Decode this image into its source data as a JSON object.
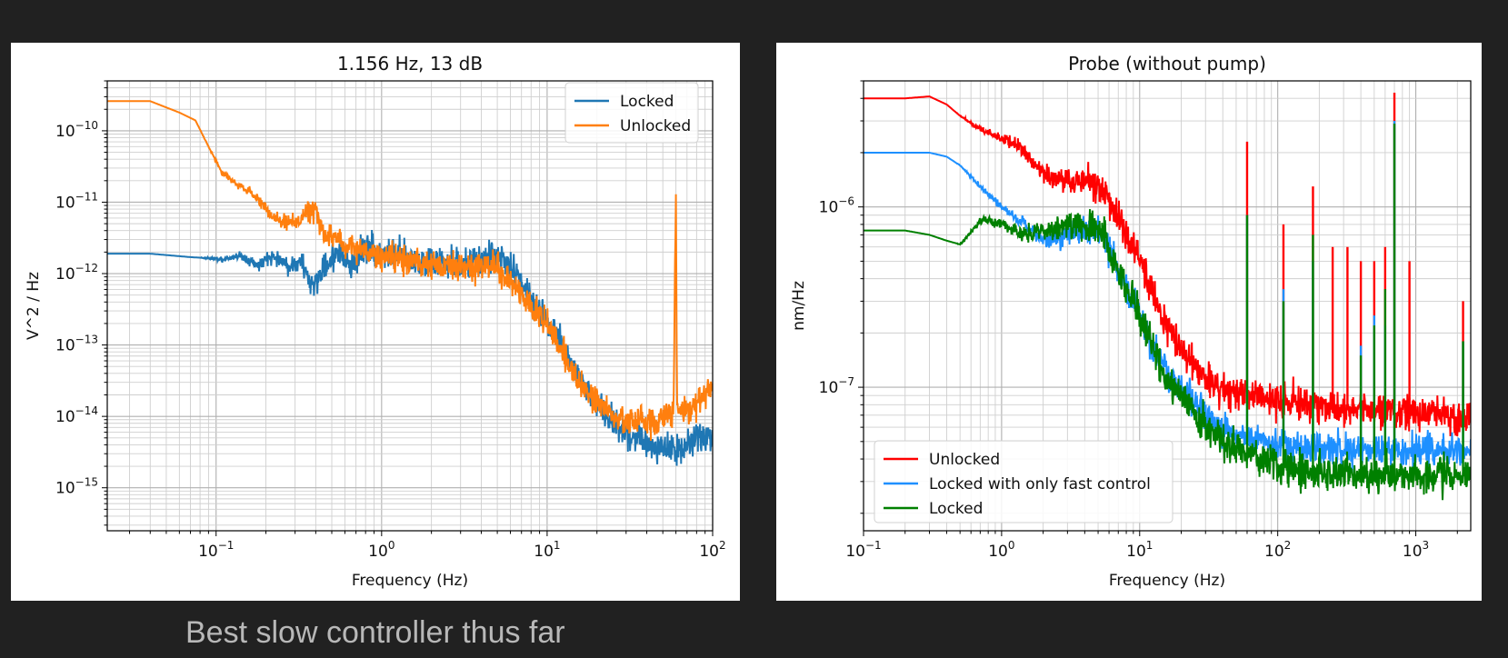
{
  "caption": "Best slow controller thus far",
  "chart_data": [
    {
      "type": "line",
      "title": "1.156 Hz, 13 dB",
      "xlabel": "Frequency (Hz)",
      "ylabel": "V^2 / Hz",
      "xscale": "log",
      "yscale": "log",
      "xlim": [
        0.022,
        100
      ],
      "ylim": [
        2.5e-16,
        5e-10
      ],
      "xticks": [
        {
          "base": "10",
          "exp": "−1"
        },
        {
          "base": "10",
          "exp": "0"
        },
        {
          "base": "10",
          "exp": "1"
        },
        {
          "base": "10",
          "exp": "2"
        }
      ],
      "yticks": [
        {
          "base": "10",
          "exp": "−15"
        },
        {
          "base": "10",
          "exp": "−14"
        },
        {
          "base": "10",
          "exp": "−13"
        },
        {
          "base": "10",
          "exp": "−12"
        },
        {
          "base": "10",
          "exp": "−11"
        },
        {
          "base": "10",
          "exp": "−10"
        }
      ],
      "grid": true,
      "legend_loc": "upper right",
      "series": [
        {
          "name": "Locked",
          "color": "#1f77b4",
          "noise": 0.5,
          "x": [
            0.022,
            0.04,
            0.07,
            0.11,
            0.14,
            0.18,
            0.22,
            0.27,
            0.33,
            0.38,
            0.45,
            0.55,
            0.65,
            0.8,
            1,
            1.5,
            2,
            3,
            4,
            5,
            6,
            7,
            8,
            10,
            12,
            15,
            20,
            25,
            30,
            40,
            50,
            60,
            70,
            80,
            100
          ],
          "y": [
            1.9e-12,
            1.9e-12,
            1.7e-12,
            1.6e-12,
            1.8e-12,
            1.3e-12,
            1.8e-12,
            1.3e-12,
            1.4e-12,
            6.5e-13,
            1.2e-12,
            2.2e-12,
            1.2e-12,
            2.5e-12,
            2e-12,
            1.6e-12,
            1.4e-12,
            1.3e-12,
            1.5e-12,
            1.8e-12,
            1.2e-12,
            8e-13,
            4e-13,
            2.2e-13,
            1.2e-13,
            4e-14,
            1.5e-14,
            8e-15,
            6e-15,
            4.5e-15,
            3.5e-15,
            3.5e-15,
            4e-15,
            5e-15,
            5e-15
          ]
        },
        {
          "name": "Unlocked",
          "color": "#ff7f0e",
          "noise": 0.45,
          "x": [
            0.022,
            0.04,
            0.06,
            0.075,
            0.09,
            0.11,
            0.14,
            0.18,
            0.22,
            0.3,
            0.35,
            0.4,
            0.45,
            0.5,
            0.6,
            0.7,
            0.8,
            1,
            1.5,
            2,
            3,
            4,
            5,
            6,
            7,
            8,
            10,
            12,
            15,
            20,
            25,
            30,
            40,
            50,
            58,
            60,
            61,
            63,
            70,
            80,
            90,
            100
          ],
          "y": [
            2.6e-10,
            2.6e-10,
            1.8e-10,
            1.4e-10,
            6e-11,
            2.5e-11,
            1.7e-11,
            1.1e-11,
            6e-12,
            5e-12,
            7e-12,
            7.5e-12,
            3.5e-12,
            3.5e-12,
            2.5e-12,
            2.5e-12,
            2e-12,
            1.8e-12,
            1.5e-12,
            1.3e-12,
            1.2e-12,
            1.3e-12,
            1.2e-12,
            8e-13,
            5e-13,
            3.5e-13,
            2e-13,
            1e-13,
            3.5e-14,
            1.6e-14,
            1e-14,
            9e-15,
            8e-15,
            9e-15,
            1.1e-14,
            1.5e-11,
            1.2e-14,
            1.2e-14,
            1.2e-14,
            1.5e-14,
            2e-14,
            3e-14
          ]
        }
      ]
    },
    {
      "type": "line",
      "title": "Probe (without pump)",
      "xlabel": "Frequency (Hz)",
      "ylabel": "nm/Hz",
      "xscale": "log",
      "yscale": "log",
      "xlim": [
        0.1,
        2500
      ],
      "ylim": [
        1.6e-08,
        5e-06
      ],
      "xticks": [
        {
          "base": "10",
          "exp": "−1"
        },
        {
          "base": "10",
          "exp": "0"
        },
        {
          "base": "10",
          "exp": "1"
        },
        {
          "base": "10",
          "exp": "2"
        },
        {
          "base": "10",
          "exp": "3"
        }
      ],
      "yticks": [
        {
          "base": "10",
          "exp": "−7"
        },
        {
          "base": "10",
          "exp": "−6"
        }
      ],
      "grid": true,
      "legend_loc": "lower left",
      "series": [
        {
          "name": "Unlocked",
          "color": "#ff0000",
          "noise": 0.22,
          "x": [
            0.1,
            0.2,
            0.3,
            0.4,
            0.5,
            0.7,
            1,
            1.3,
            1.7,
            2,
            3,
            4,
            5,
            6,
            7,
            8,
            10,
            12,
            15,
            20,
            25,
            30,
            40,
            50,
            70,
            100,
            200,
            500,
            1000,
            2500
          ],
          "y": [
            4e-06,
            4e-06,
            4.1e-06,
            3.7e-06,
            3.2e-06,
            2.7e-06,
            2.4e-06,
            2.2e-06,
            1.8e-06,
            1.5e-06,
            1.4e-06,
            1.4e-06,
            1.3e-06,
            1.1e-06,
            9e-07,
            7e-07,
            5e-07,
            3.5e-07,
            2.4e-07,
            1.6e-07,
            1.3e-07,
            1.1e-07,
            1e-07,
            9.5e-08,
            9e-08,
            8.5e-08,
            8e-08,
            7.5e-08,
            7e-08,
            7e-08
          ],
          "peaks": [
            [
              60,
              2.3e-06
            ],
            [
              110,
              8e-07
            ],
            [
              180,
              1.3e-06
            ],
            [
              250,
              6e-07
            ],
            [
              320,
              6e-07
            ],
            [
              400,
              5e-07
            ],
            [
              500,
              5e-07
            ],
            [
              600,
              6e-07
            ],
            [
              700,
              4.3e-06
            ],
            [
              900,
              5e-07
            ],
            [
              2200,
              3e-07
            ]
          ]
        },
        {
          "name": "Locked with only fast control",
          "color": "#1e90ff",
          "noise": 0.2,
          "x": [
            0.1,
            0.2,
            0.3,
            0.4,
            0.5,
            0.7,
            1,
            1.5,
            2,
            3,
            4,
            5,
            6,
            7,
            8,
            10,
            12,
            15,
            20,
            25,
            30,
            40,
            50,
            70,
            100,
            200,
            500,
            1000,
            2500
          ],
          "y": [
            2e-06,
            2e-06,
            2e-06,
            1.9e-06,
            1.7e-06,
            1.3e-06,
            1e-06,
            8e-07,
            6.5e-07,
            7e-07,
            7.5e-07,
            7.5e-07,
            6e-07,
            4.5e-07,
            3.5e-07,
            2.5e-07,
            1.8e-07,
            1.3e-07,
            1e-07,
            8e-08,
            7e-08,
            6e-08,
            5.5e-08,
            5e-08,
            4.8e-08,
            4.5e-08,
            4.5e-08,
            4.5e-08,
            4.5e-08
          ],
          "peaks": [
            [
              60,
              9e-07
            ],
            [
              110,
              3.5e-07
            ],
            [
              180,
              5e-07
            ],
            [
              400,
              1.7e-07
            ],
            [
              500,
              2.5e-07
            ],
            [
              600,
              2.2e-07
            ],
            [
              700,
              3e-06
            ],
            [
              2200,
              1.8e-07
            ]
          ]
        },
        {
          "name": "Locked",
          "color": "#008000",
          "noise": 0.22,
          "x": [
            0.1,
            0.2,
            0.3,
            0.4,
            0.5,
            0.7,
            0.8,
            1,
            1.5,
            2,
            3,
            4,
            5,
            6,
            7,
            8,
            10,
            12,
            15,
            20,
            25,
            30,
            40,
            50,
            70,
            100,
            200,
            500,
            1000,
            2500
          ],
          "y": [
            7.4e-07,
            7.4e-07,
            7e-07,
            6.5e-07,
            6.2e-07,
            8.3e-07,
            8.5e-07,
            8e-07,
            7e-07,
            7.3e-07,
            8e-07,
            8e-07,
            7.8e-07,
            6e-07,
            4.5e-07,
            3.5e-07,
            2.5e-07,
            1.8e-07,
            1.2e-07,
            9e-08,
            7e-08,
            6e-08,
            5e-08,
            4.5e-08,
            4e-08,
            3.7e-08,
            3.4e-08,
            3.2e-08,
            3.2e-08,
            3.2e-08
          ],
          "peaks": [
            [
              60,
              9e-07
            ],
            [
              110,
              3e-07
            ],
            [
              180,
              7e-07
            ],
            [
              400,
              1.5e-07
            ],
            [
              500,
              2.2e-07
            ],
            [
              600,
              3.5e-07
            ],
            [
              700,
              2.9e-06
            ],
            [
              2200,
              1.8e-07
            ]
          ]
        }
      ]
    }
  ]
}
